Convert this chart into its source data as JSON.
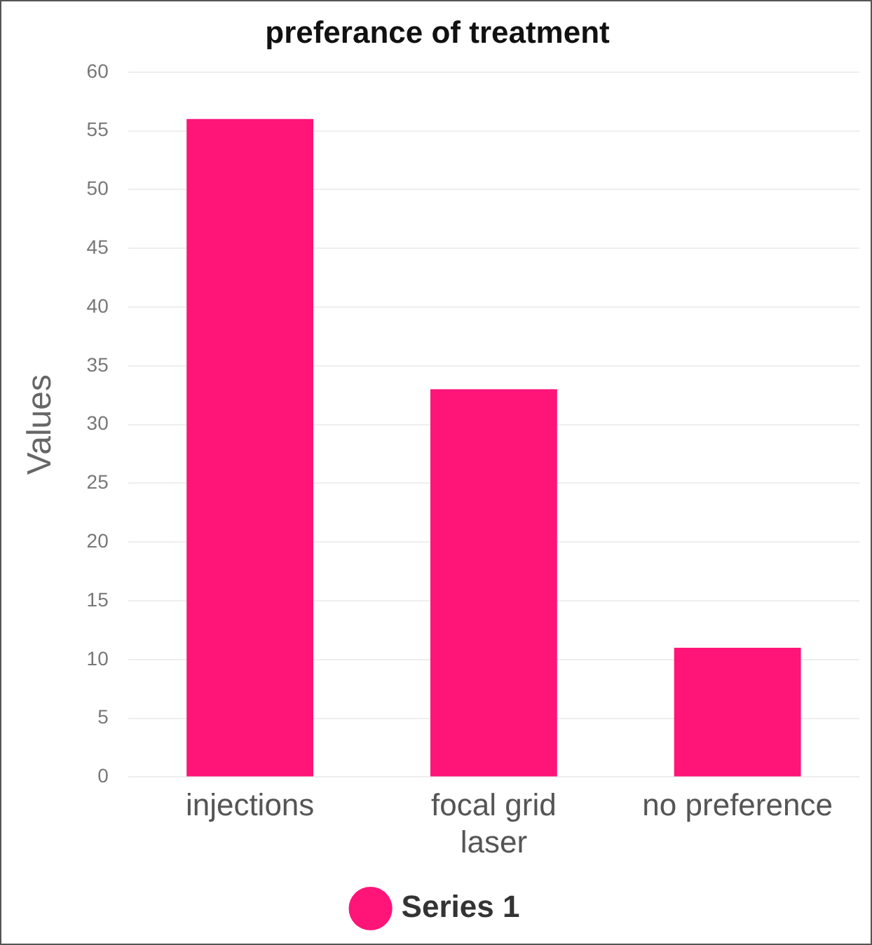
{
  "chart_data": {
    "type": "bar",
    "title": "preferance of treatment",
    "ylabel": "Values",
    "categories": [
      "injections",
      "focal grid laser",
      "no preference"
    ],
    "series": [
      {
        "name": "Series 1",
        "color": "#ff1478",
        "values": [
          56,
          33,
          11
        ]
      }
    ],
    "ylim": [
      0,
      60
    ],
    "yticks": [
      0,
      5,
      10,
      15,
      20,
      25,
      30,
      35,
      40,
      45,
      50,
      55,
      60
    ],
    "grid": "y",
    "legend": "bottom"
  }
}
